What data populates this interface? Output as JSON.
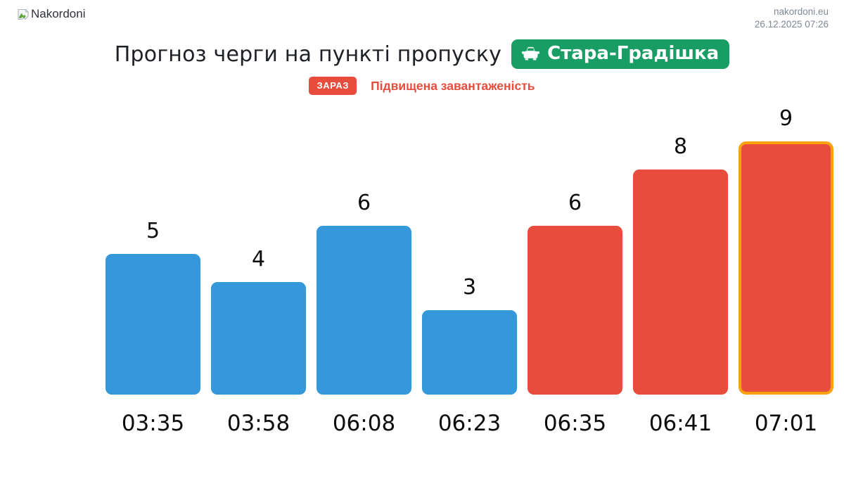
{
  "header": {
    "logo_text": "Nakordoni",
    "site_url": "nakordoni.eu",
    "timestamp": "26.12.2025 07:26"
  },
  "title": {
    "text": "Прогноз черги на пункті пропуску",
    "crossing_name": "Стара-Градішка"
  },
  "status": {
    "badge_label": "ЗАРАЗ",
    "message": "Підвищена завантаженість"
  },
  "chart_data": {
    "type": "bar",
    "title": "Прогноз черги на пункті пропуску Стара-Градішка",
    "categories": [
      "03:35",
      "03:58",
      "06:08",
      "06:23",
      "06:35",
      "06:41",
      "07:01"
    ],
    "values": [
      5,
      4,
      6,
      3,
      6,
      8,
      9
    ],
    "bar_colors": [
      "#3498db",
      "#3498db",
      "#3498db",
      "#3498db",
      "#e74c3c",
      "#e74c3c",
      "#e74c3c"
    ],
    "highlight_index": 6,
    "highlight_border_color": "#f9a20d",
    "value_labels": true,
    "grid": false,
    "xlabel": "",
    "ylabel": "",
    "ylim": [
      0,
      9
    ],
    "legend": "none"
  },
  "colors": {
    "accent_green": "#189e64",
    "accent_red": "#e74c3c",
    "accent_blue": "#3498db",
    "highlight_orange": "#f9a20d",
    "muted_text": "#7d8893"
  }
}
